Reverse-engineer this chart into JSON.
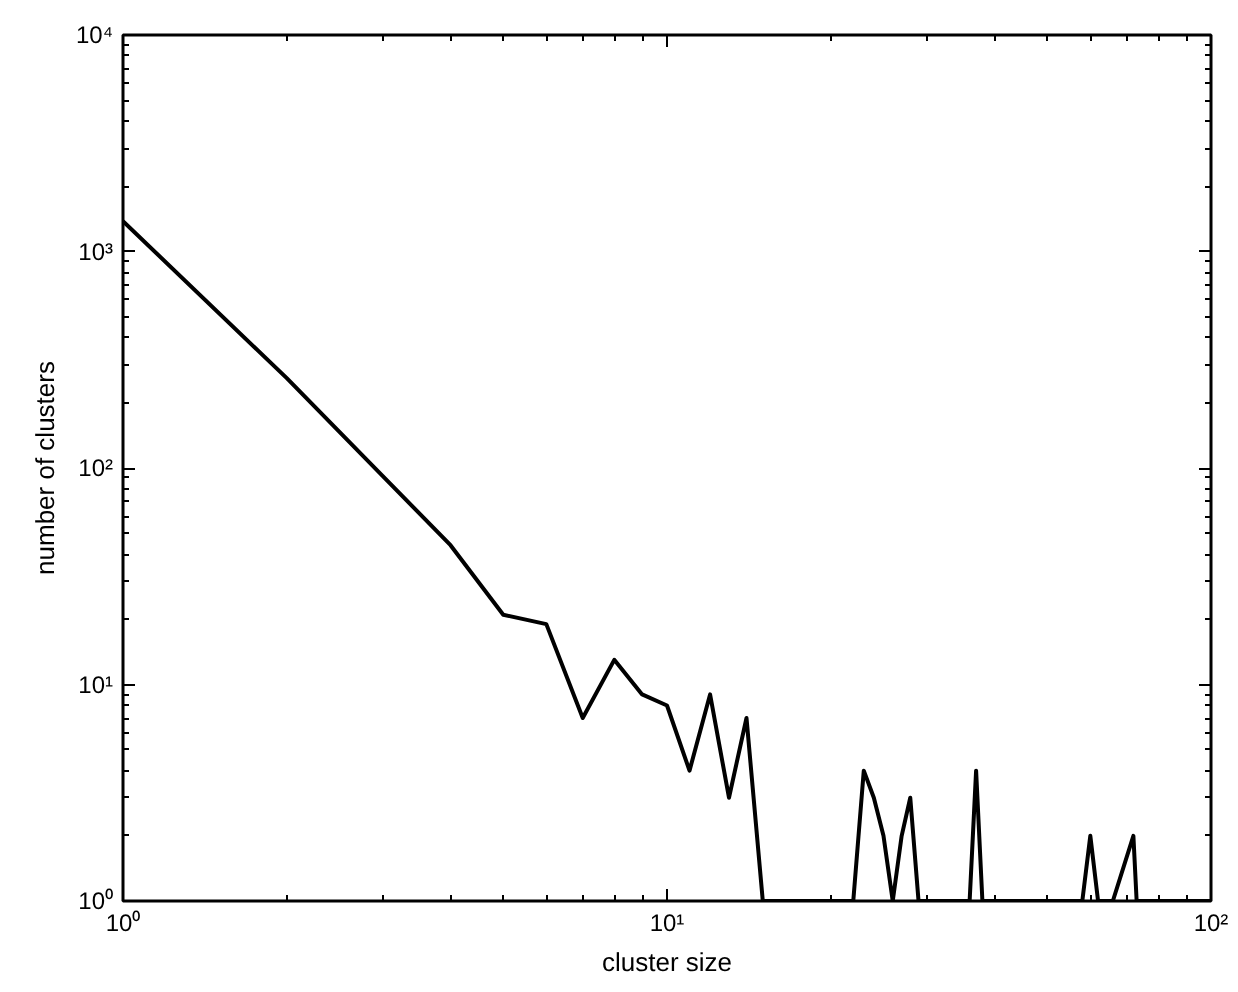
{
  "chart_data": {
    "type": "line",
    "xlabel": "cluster size",
    "ylabel": "number of clusters",
    "log": "xy",
    "grid": false,
    "marker": "none",
    "line_style": "solid",
    "xlim": [
      1,
      100
    ],
    "ylim": [
      1,
      10000
    ],
    "xticks": [
      {
        "value": 1,
        "label": "10⁰"
      },
      {
        "value": 10,
        "label": "10¹"
      },
      {
        "value": 100,
        "label": "10²"
      }
    ],
    "yticks": [
      {
        "value": 1,
        "label": "10⁰"
      },
      {
        "value": 10,
        "label": "10¹"
      },
      {
        "value": 100,
        "label": "10²"
      },
      {
        "value": 1000,
        "label": "10³"
      },
      {
        "value": 10000,
        "label": "10⁴"
      }
    ],
    "series": [
      {
        "color": "#000000",
        "x": [
          1,
          2,
          3,
          4,
          5,
          6,
          7,
          8,
          9,
          10,
          11,
          12,
          13,
          14,
          15,
          22,
          23,
          24,
          25,
          26,
          27,
          28,
          29,
          36,
          37,
          38,
          58,
          60,
          62,
          66,
          72,
          73,
          100
        ],
        "values": [
          1380,
          260,
          92,
          44,
          21,
          19,
          7,
          13,
          9,
          8,
          4,
          9,
          3,
          7,
          1,
          1,
          4,
          3,
          2,
          1,
          2,
          3,
          1,
          1,
          4,
          1,
          1,
          2,
          1,
          1,
          2,
          1,
          1
        ]
      }
    ]
  }
}
